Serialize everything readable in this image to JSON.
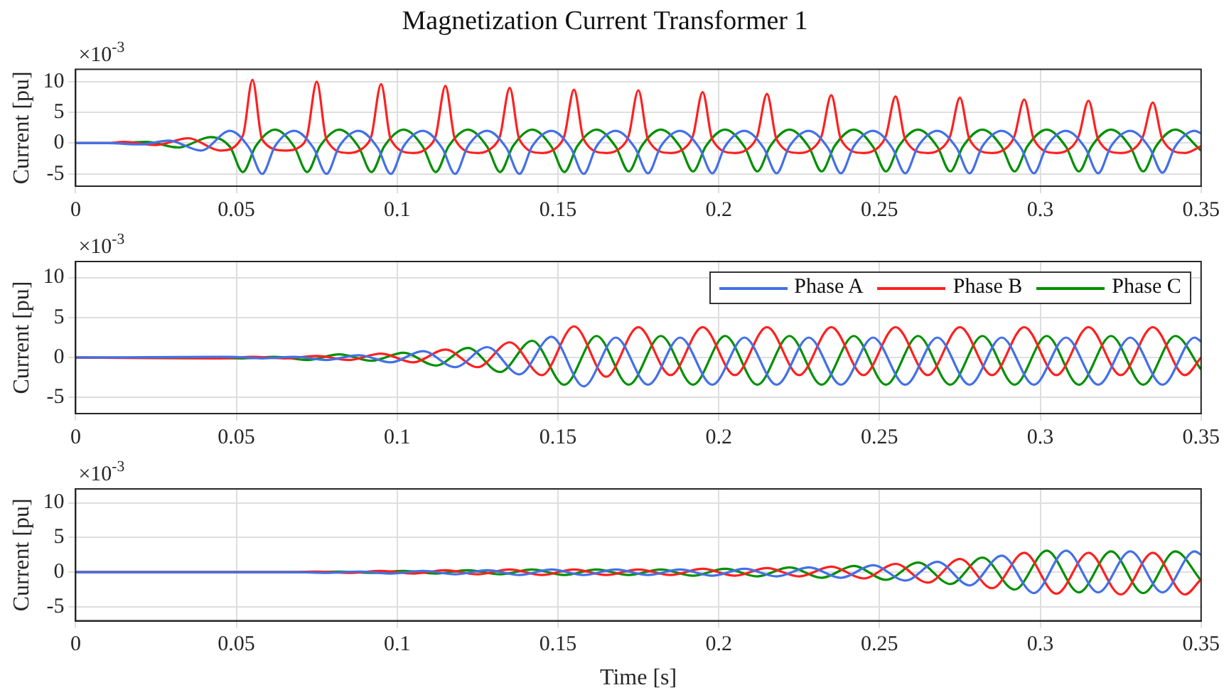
{
  "chart_data": [
    {
      "type": "line",
      "title": "Magnetization Current Transformer 1",
      "ylabel": "Current [pu]",
      "annotations": [
        "×10$^{-3}$"
      ],
      "xlim": [
        0,
        0.35
      ],
      "xticks": [
        0,
        0.05,
        0.1,
        0.15,
        0.2,
        0.25,
        0.3,
        0.35
      ],
      "ylim": [
        -7,
        12
      ],
      "yticks": [
        -5,
        0,
        5,
        10
      ],
      "grid": true,
      "line_style": "solid",
      "series": [
        {
          "color": "#4470e6",
          "x": [
            0,
            0.01,
            0.02,
            0.029,
            0.039,
            0.048,
            0.054,
            0.058,
            0.062,
            0.068,
            0.074,
            0.078,
            0.082,
            0.088,
            0.094,
            0.098,
            0.102,
            0.108,
            0.114,
            0.118,
            0.122,
            0.128,
            0.134,
            0.138,
            0.142,
            0.148,
            0.154,
            0.158,
            0.162,
            0.168,
            0.174,
            0.178,
            0.182,
            0.188,
            0.194,
            0.198,
            0.202,
            0.208,
            0.214,
            0.218,
            0.222,
            0.228,
            0.234,
            0.238,
            0.242,
            0.248,
            0.254,
            0.258,
            0.262,
            0.268,
            0.274,
            0.278,
            0.282,
            0.288,
            0.294,
            0.298,
            0.302,
            0.308,
            0.314,
            0.318,
            0.322,
            0.328,
            0.334,
            0.338,
            0.342,
            0.348,
            0.35
          ],
          "values": [
            0,
            0,
            -0.2,
            0.4,
            -1.2,
            2.0,
            -0.8,
            -5.0,
            -0.5,
            2.0,
            -0.8,
            -5.0,
            -0.5,
            2.0,
            -0.8,
            -5.0,
            -0.5,
            2.0,
            -0.8,
            -5.0,
            -0.5,
            2.0,
            -0.8,
            -5.0,
            -0.5,
            2.0,
            -0.8,
            -5.0,
            -0.5,
            2.0,
            -0.8,
            -4.9,
            -0.5,
            2.0,
            -0.8,
            -4.9,
            -0.5,
            2.0,
            -0.8,
            -4.9,
            -0.5,
            2.0,
            -0.8,
            -4.9,
            -0.5,
            2.0,
            -0.8,
            -4.9,
            -0.5,
            2.0,
            -0.8,
            -4.9,
            -0.5,
            2.0,
            -0.8,
            -4.9,
            -0.5,
            2.0,
            -0.8,
            -4.9,
            -0.5,
            2.0,
            -0.8,
            -4.8,
            -0.5,
            2.0,
            1.6
          ]
        },
        {
          "color": "#ff2020",
          "x": [
            0,
            0.01,
            0.015,
            0.025,
            0.035,
            0.045,
            0.052,
            0.055,
            0.058,
            0.065,
            0.07,
            0.072,
            0.075,
            0.078,
            0.085,
            0.09,
            0.092,
            0.095,
            0.098,
            0.105,
            0.11,
            0.112,
            0.115,
            0.118,
            0.125,
            0.13,
            0.132,
            0.135,
            0.138,
            0.145,
            0.15,
            0.152,
            0.155,
            0.158,
            0.165,
            0.17,
            0.172,
            0.175,
            0.178,
            0.185,
            0.19,
            0.192,
            0.195,
            0.198,
            0.205,
            0.21,
            0.212,
            0.215,
            0.218,
            0.225,
            0.23,
            0.232,
            0.235,
            0.238,
            0.245,
            0.25,
            0.252,
            0.255,
            0.258,
            0.265,
            0.27,
            0.272,
            0.275,
            0.278,
            0.285,
            0.29,
            0.292,
            0.295,
            0.298,
            0.305,
            0.31,
            0.312,
            0.315,
            0.318,
            0.325,
            0.33,
            0.332,
            0.335,
            0.338,
            0.345,
            0.35
          ],
          "values": [
            0,
            0,
            0.2,
            -0.3,
            0.8,
            -1.2,
            1.2,
            10.3,
            0.6,
            -1.2,
            -0.5,
            1.2,
            10.0,
            0.6,
            -1.6,
            -0.5,
            1.2,
            9.6,
            0.6,
            -1.6,
            -0.5,
            1.2,
            9.3,
            0.6,
            -1.6,
            -0.5,
            1.2,
            9.0,
            0.6,
            -1.6,
            -0.5,
            1.2,
            8.7,
            0.6,
            -1.6,
            -0.5,
            1.2,
            8.6,
            0.6,
            -1.6,
            -0.5,
            1.2,
            8.3,
            0.6,
            -1.6,
            -0.5,
            1.2,
            8.0,
            0.6,
            -1.6,
            -0.5,
            1.2,
            7.8,
            0.6,
            -1.6,
            -0.5,
            1.2,
            7.6,
            0.6,
            -1.6,
            -0.5,
            1.2,
            7.4,
            0.6,
            -1.6,
            -0.5,
            1.2,
            7.1,
            0.6,
            -1.6,
            -0.5,
            1.2,
            6.9,
            0.6,
            -1.6,
            -0.5,
            1.2,
            6.6,
            0.6,
            -1.6,
            -0.5
          ]
        },
        {
          "color": "#009000",
          "x": [
            0,
            0.012,
            0.022,
            0.032,
            0.042,
            0.048,
            0.052,
            0.056,
            0.062,
            0.068,
            0.072,
            0.076,
            0.082,
            0.088,
            0.092,
            0.096,
            0.102,
            0.108,
            0.112,
            0.116,
            0.122,
            0.128,
            0.132,
            0.136,
            0.142,
            0.148,
            0.152,
            0.156,
            0.162,
            0.168,
            0.172,
            0.176,
            0.182,
            0.188,
            0.192,
            0.196,
            0.202,
            0.208,
            0.212,
            0.216,
            0.222,
            0.228,
            0.232,
            0.236,
            0.242,
            0.248,
            0.252,
            0.256,
            0.262,
            0.268,
            0.272,
            0.276,
            0.282,
            0.288,
            0.292,
            0.296,
            0.302,
            0.308,
            0.312,
            0.316,
            0.322,
            0.328,
            0.332,
            0.336,
            0.342,
            0.35
          ],
          "values": [
            0,
            0,
            0.2,
            -0.7,
            1.0,
            -0.6,
            -4.7,
            -0.5,
            2.2,
            -0.6,
            -4.7,
            -0.5,
            2.2,
            -0.6,
            -4.7,
            -0.5,
            2.2,
            -0.6,
            -4.7,
            -0.5,
            2.2,
            -0.6,
            -4.7,
            -0.5,
            2.2,
            -0.6,
            -4.7,
            -0.5,
            2.2,
            -0.6,
            -4.6,
            -0.5,
            2.2,
            -0.6,
            -4.6,
            -0.5,
            2.2,
            -0.6,
            -4.6,
            -0.5,
            2.2,
            -0.6,
            -4.6,
            -0.5,
            2.2,
            -0.6,
            -4.6,
            -0.5,
            2.2,
            -0.6,
            -4.6,
            -0.5,
            2.2,
            -0.6,
            -4.6,
            -0.5,
            2.2,
            -0.6,
            -4.6,
            -0.5,
            2.2,
            -0.6,
            -4.6,
            -0.5,
            2.2,
            -1.2
          ]
        }
      ]
    },
    {
      "type": "line",
      "ylabel": "Current [pu]",
      "annotations": [
        "×10$^{-3}$"
      ],
      "xlim": [
        0,
        0.35
      ],
      "xticks": [
        0,
        0.05,
        0.1,
        0.15,
        0.2,
        0.25,
        0.3,
        0.35
      ],
      "ylim": [
        -7,
        12
      ],
      "yticks": [
        -5,
        0,
        5,
        10
      ],
      "grid": true,
      "legend": "top right",
      "line_style": "solid",
      "series": [
        {
          "name": "Phase A",
          "color": "#4470e6",
          "x": [
            0,
            0.048,
            0.058,
            0.068,
            0.078,
            0.088,
            0.098,
            0.108,
            0.118,
            0.128,
            0.138,
            0.148,
            0.158,
            0.168,
            0.178,
            0.188,
            0.198,
            0.208,
            0.218,
            0.228,
            0.238,
            0.248,
            0.258,
            0.268,
            0.278,
            0.288,
            0.298,
            0.308,
            0.318,
            0.328,
            0.338,
            0.348,
            0.35
          ],
          "values": [
            0,
            0.1,
            -0.1,
            0.1,
            -0.3,
            0.3,
            -0.6,
            0.8,
            -1.2,
            1.3,
            -2.1,
            2.6,
            -3.6,
            2.5,
            -3.4,
            2.5,
            -3.4,
            2.5,
            -3.4,
            2.5,
            -3.4,
            2.5,
            -3.4,
            2.5,
            -3.4,
            2.5,
            -3.4,
            2.5,
            -3.4,
            2.5,
            -3.4,
            2.5,
            2.0
          ]
        },
        {
          "name": "Phase B",
          "color": "#ff2020",
          "x": [
            0,
            0.045,
            0.055,
            0.065,
            0.075,
            0.085,
            0.095,
            0.105,
            0.115,
            0.125,
            0.135,
            0.145,
            0.155,
            0.165,
            0.175,
            0.185,
            0.195,
            0.205,
            0.215,
            0.225,
            0.235,
            0.245,
            0.255,
            0.265,
            0.275,
            0.285,
            0.295,
            0.305,
            0.315,
            0.325,
            0.335,
            0.345,
            0.35
          ],
          "values": [
            0,
            -0.1,
            0.1,
            -0.1,
            0.2,
            -0.3,
            0.5,
            -0.6,
            1.0,
            -1.2,
            1.9,
            -2.2,
            3.9,
            -2.4,
            3.8,
            -2.2,
            3.8,
            -2.2,
            3.8,
            -2.2,
            3.8,
            -2.2,
            3.8,
            -2.2,
            3.8,
            -2.2,
            3.8,
            -2.2,
            3.8,
            -2.2,
            3.8,
            -2.2,
            0
          ]
        },
        {
          "name": "Phase C",
          "color": "#009000",
          "x": [
            0,
            0.052,
            0.062,
            0.072,
            0.082,
            0.092,
            0.102,
            0.112,
            0.122,
            0.132,
            0.142,
            0.152,
            0.162,
            0.172,
            0.182,
            0.192,
            0.202,
            0.212,
            0.222,
            0.232,
            0.242,
            0.252,
            0.262,
            0.272,
            0.282,
            0.292,
            0.302,
            0.312,
            0.322,
            0.332,
            0.342,
            0.35
          ],
          "values": [
            0,
            -0.1,
            0.1,
            -0.3,
            0.4,
            -0.4,
            0.6,
            -1.0,
            1.2,
            -1.8,
            2.1,
            -3.4,
            2.7,
            -3.4,
            2.7,
            -3.4,
            2.7,
            -3.4,
            2.7,
            -3.4,
            2.7,
            -3.4,
            2.7,
            -3.4,
            2.7,
            -3.4,
            2.7,
            -3.4,
            2.7,
            -3.4,
            2.7,
            -1.5
          ]
        }
      ]
    },
    {
      "type": "line",
      "xlabel": "Time [s]",
      "ylabel": "Current [pu]",
      "annotations": [
        "×10$^{-3}$"
      ],
      "xlim": [
        0,
        0.35
      ],
      "xticks": [
        0,
        0.05,
        0.1,
        0.15,
        0.2,
        0.25,
        0.3,
        0.35
      ],
      "ylim": [
        -7,
        12
      ],
      "yticks": [
        -5,
        0,
        5,
        10
      ],
      "grid": true,
      "line_style": "solid",
      "series": [
        {
          "color": "#4470e6",
          "x": [
            0,
            0.068,
            0.078,
            0.088,
            0.098,
            0.108,
            0.118,
            0.128,
            0.138,
            0.148,
            0.158,
            0.168,
            0.178,
            0.188,
            0.198,
            0.208,
            0.218,
            0.228,
            0.238,
            0.248,
            0.258,
            0.268,
            0.278,
            0.288,
            0.298,
            0.308,
            0.318,
            0.328,
            0.338,
            0.348,
            0.35
          ],
          "values": [
            0,
            0,
            -0.1,
            0.1,
            -0.2,
            0.2,
            -0.3,
            0.3,
            -0.4,
            0.4,
            -0.4,
            0.4,
            -0.4,
            0.4,
            -0.5,
            0.5,
            -0.6,
            0.7,
            -0.8,
            1.0,
            -1.2,
            1.5,
            -1.9,
            2.4,
            -3.0,
            3.1,
            -2.9,
            3.0,
            -2.9,
            3.0,
            2.5
          ]
        },
        {
          "color": "#ff2020",
          "x": [
            0,
            0.065,
            0.075,
            0.085,
            0.095,
            0.105,
            0.115,
            0.125,
            0.135,
            0.145,
            0.155,
            0.165,
            0.175,
            0.185,
            0.195,
            0.205,
            0.215,
            0.225,
            0.235,
            0.245,
            0.255,
            0.265,
            0.275,
            0.285,
            0.295,
            0.305,
            0.315,
            0.325,
            0.335,
            0.345,
            0.35
          ],
          "values": [
            0,
            0,
            0.1,
            -0.1,
            0.2,
            -0.2,
            0.3,
            -0.3,
            0.4,
            -0.4,
            0.4,
            -0.4,
            0.4,
            -0.4,
            0.5,
            -0.5,
            0.6,
            -0.6,
            0.8,
            -0.9,
            1.2,
            -1.5,
            1.9,
            -2.3,
            2.8,
            -3.1,
            2.8,
            -3.2,
            2.8,
            -3.2,
            -1.0
          ]
        },
        {
          "color": "#009000",
          "x": [
            0,
            0.072,
            0.082,
            0.092,
            0.102,
            0.112,
            0.122,
            0.132,
            0.142,
            0.152,
            0.162,
            0.172,
            0.182,
            0.192,
            0.202,
            0.212,
            0.222,
            0.232,
            0.242,
            0.252,
            0.262,
            0.272,
            0.282,
            0.292,
            0.302,
            0.312,
            0.322,
            0.332,
            0.342,
            0.35
          ],
          "values": [
            0,
            0,
            0.1,
            -0.1,
            0.2,
            -0.2,
            0.3,
            -0.3,
            0.4,
            -0.4,
            0.4,
            -0.4,
            0.4,
            -0.5,
            0.5,
            -0.6,
            0.7,
            -0.8,
            0.9,
            -1.1,
            1.4,
            -1.7,
            2.1,
            -2.5,
            3.1,
            -2.9,
            3.0,
            -3.0,
            3.0,
            -1.2
          ]
        }
      ]
    }
  ]
}
